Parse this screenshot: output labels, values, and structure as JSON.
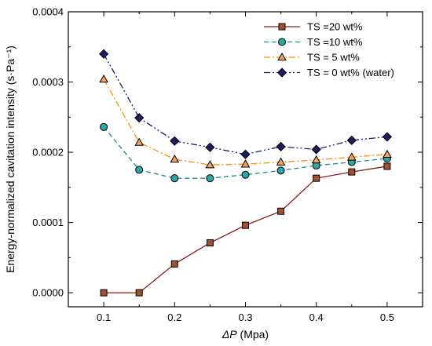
{
  "chart_data": {
    "type": "line",
    "title": "",
    "xlabel_symbol": "ΔP",
    "xlabel_unit": " (Mpa)",
    "ylabel": "Energy-normalized cavitation intensity (s·Pa⁻¹)",
    "xlim": [
      0.05,
      0.55
    ],
    "ylim": [
      -2e-05,
      0.0004
    ],
    "x_ticks": [
      0.1,
      0.2,
      0.3,
      0.4,
      0.5
    ],
    "x_tick_labels": [
      "0.1",
      "0.2",
      "0.3",
      "0.4",
      "0.5"
    ],
    "y_ticks": [
      0.0,
      0.0001,
      0.0002,
      0.0003,
      0.0004
    ],
    "y_tick_labels": [
      "0.0000",
      "0.0001",
      "0.0002",
      "0.0003",
      "0.0004"
    ],
    "grid": false,
    "legend_position": "top-right",
    "x": [
      0.1,
      0.15,
      0.2,
      0.25,
      0.3,
      0.35,
      0.4,
      0.45,
      0.5
    ],
    "series": [
      {
        "name": "TS =20 wt%",
        "values": [
          0.0,
          0.0,
          4.1e-05,
          7.1e-05,
          9.6e-05,
          0.000116,
          0.000163,
          0.000172,
          0.00018
        ],
        "color": "#8b1a1a",
        "marker_fill": "#a0522d",
        "marker": "square",
        "dash": "solid"
      },
      {
        "name": "TS =10 wt%",
        "values": [
          0.000236,
          0.000175,
          0.000163,
          0.000163,
          0.000168,
          0.000174,
          0.000181,
          0.000186,
          0.000191
        ],
        "color": "#1f8a8a",
        "marker_fill": "#2aa7a7",
        "marker": "circle",
        "dash": "dash"
      },
      {
        "name": "TS = 5  wt%",
        "values": [
          0.000304,
          0.000214,
          0.00019,
          0.000182,
          0.000183,
          0.000186,
          0.000189,
          0.000193,
          0.000197
        ],
        "color": "#ff8c00",
        "marker_fill": "#f4a460",
        "marker": "triangle",
        "dash": "dashdot"
      },
      {
        "name": "TS = 0  wt% (water)",
        "values": [
          0.00034,
          0.000249,
          0.000216,
          0.000207,
          0.000197,
          0.000208,
          0.000204,
          0.000217,
          0.000222
        ],
        "color": "#1a1a6e",
        "marker_fill": "#1c1c5e",
        "marker": "diamond",
        "dash": "dashdotdot"
      }
    ]
  }
}
